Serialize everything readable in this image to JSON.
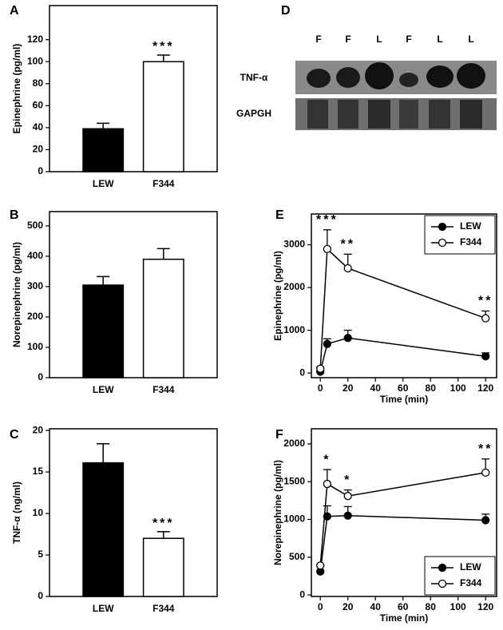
{
  "chart_data": [
    {
      "type": "bar",
      "label": "A",
      "y_label": "Epinephrine (pg/ml)",
      "categories": [
        "LEW",
        "F344"
      ],
      "values": [
        39,
        100
      ],
      "errors": [
        5,
        6
      ],
      "value_annotations": [
        null,
        "***"
      ],
      "colors": [
        "#000000",
        "#ffffff"
      ],
      "ylim": [
        0,
        151
      ],
      "yticks": [
        0,
        20,
        40,
        60,
        80,
        100,
        120
      ]
    },
    {
      "type": "bar",
      "label": "B",
      "y_label": "Norepinephrine (pg/ml)",
      "categories": [
        "LEW",
        "F344"
      ],
      "values": [
        305,
        390
      ],
      "errors": [
        28,
        35
      ],
      "colors": [
        "#000000",
        "#ffffff"
      ],
      "ylim": [
        0,
        547
      ],
      "yticks": [
        0,
        100,
        200,
        300,
        400,
        500
      ]
    },
    {
      "type": "bar",
      "label": "C",
      "y_label": "TNF-α (ng/ml)",
      "categories": [
        "LEW",
        "F344"
      ],
      "values": [
        16.1,
        7.0
      ],
      "errors": [
        2.3,
        0.8
      ],
      "value_annotations": [
        null,
        "***"
      ],
      "colors": [
        "#000000",
        "#ffffff"
      ],
      "ylim": [
        0,
        20.2
      ],
      "yticks": [
        0,
        5,
        10,
        15,
        20
      ]
    },
    {
      "type": "line",
      "label": "E",
      "y_label": "Epinephrine (pg/ml)",
      "x_label": "Time (min)",
      "x": [
        0,
        5,
        20,
        120
      ],
      "series": [
        {
          "name": "LEW",
          "color": "#000000",
          "fill": "#000000",
          "values": [
            30,
            680,
            820,
            390
          ],
          "errors": [
            20,
            120,
            180,
            80
          ]
        },
        {
          "name": "F344",
          "color": "#000000",
          "fill": "#ffffff",
          "values": [
            100,
            2900,
            2450,
            1280
          ],
          "errors": [
            40,
            450,
            330,
            170
          ],
          "annotations": [
            null,
            "***",
            "**",
            "**"
          ]
        }
      ],
      "xlim": [
        -6.5,
        128
      ],
      "xticks": [
        0,
        20,
        40,
        60,
        80,
        100,
        120
      ],
      "ylim": [
        -110,
        3720
      ],
      "yticks": [
        0,
        1000,
        2000,
        3000
      ],
      "legend": "upper right"
    },
    {
      "type": "line",
      "label": "F",
      "y_label": "Norepinephrine (pg/ml)",
      "x_label": "Time (min)",
      "x": [
        0,
        5,
        20,
        120
      ],
      "series": [
        {
          "name": "LEW",
          "color": "#000000",
          "fill": "#000000",
          "values": [
            310,
            1040,
            1050,
            990
          ],
          "errors": [
            0,
            140,
            120,
            80
          ]
        },
        {
          "name": "F344",
          "color": "#000000",
          "fill": "#ffffff",
          "values": [
            390,
            1470,
            1310,
            1620
          ],
          "errors": [
            0,
            190,
            80,
            180
          ],
          "annotations": [
            null,
            "*",
            "*",
            "**"
          ]
        }
      ],
      "xlim": [
        -6.5,
        128
      ],
      "xticks": [
        0,
        20,
        40,
        60,
        80,
        100,
        120
      ],
      "ylim": [
        -20,
        2200
      ],
      "yticks": [
        0,
        500,
        1000,
        1500,
        2000
      ],
      "legend": "lower right"
    }
  ],
  "blot": {
    "label": "D",
    "lanes": [
      "F",
      "F",
      "L",
      "F",
      "L",
      "L"
    ],
    "rows": [
      "TNF-α",
      "GAPGH"
    ]
  }
}
